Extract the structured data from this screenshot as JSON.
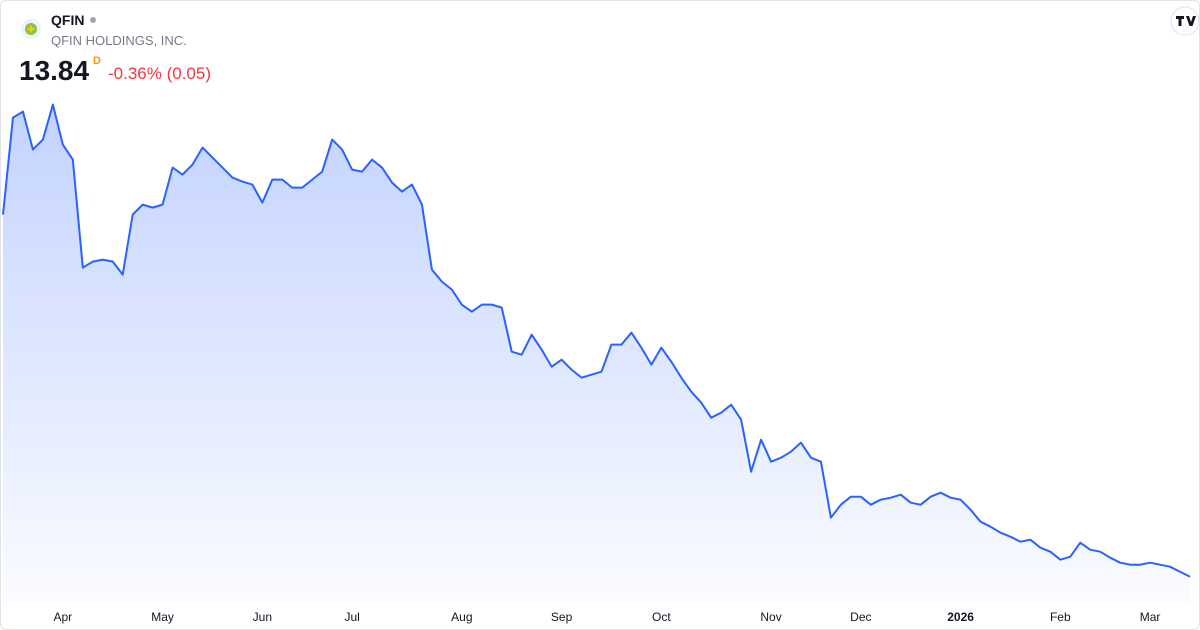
{
  "chart_data": {
    "type": "area",
    "symbol": "QFIN",
    "company": "QFIN HOLDINGS, INC.",
    "price": "13.84",
    "interval": "D",
    "change": "-0.36% (0.05)",
    "color": "#2962ff",
    "ylim": [
      12,
      50
    ],
    "categories": [
      null,
      null,
      null,
      null,
      null,
      null,
      "Apr",
      null,
      null,
      null,
      null,
      null,
      null,
      null,
      null,
      null,
      "May",
      null,
      null,
      null,
      null,
      null,
      null,
      null,
      null,
      null,
      "Jun",
      null,
      null,
      null,
      null,
      null,
      null,
      null,
      null,
      "Jul",
      null,
      null,
      null,
      null,
      null,
      null,
      null,
      null,
      null,
      null,
      "Aug",
      null,
      null,
      null,
      null,
      null,
      null,
      null,
      null,
      null,
      "Sep",
      null,
      null,
      null,
      null,
      null,
      null,
      null,
      null,
      null,
      "Oct",
      null,
      null,
      null,
      null,
      null,
      null,
      null,
      null,
      null,
      null,
      "Nov",
      null,
      null,
      null,
      null,
      null,
      null,
      null,
      null,
      "Dec",
      null,
      null,
      null,
      null,
      null,
      null,
      null,
      null,
      null,
      "2026",
      null,
      null,
      null,
      null,
      null,
      null,
      null,
      null,
      null,
      "Feb",
      null,
      null,
      null,
      null,
      null,
      null,
      null,
      null,
      "Mar",
      null,
      null,
      null,
      null
    ],
    "values": [
      39.18,
      45.97,
      46.39,
      43.73,
      44.43,
      46.88,
      44.08,
      43.03,
      35.47,
      35.89,
      36.03,
      35.89,
      34.98,
      39.18,
      39.88,
      39.67,
      39.88,
      42.47,
      41.98,
      42.68,
      43.87,
      43.17,
      42.47,
      41.77,
      41.49,
      41.28,
      40.02,
      41.63,
      41.63,
      41.07,
      41.07,
      41.63,
      42.19,
      44.43,
      43.73,
      42.33,
      42.19,
      43.03,
      42.47,
      41.42,
      40.79,
      41.28,
      39.88,
      35.33,
      34.49,
      33.93,
      32.88,
      32.39,
      32.88,
      32.88,
      32.67,
      29.59,
      29.38,
      30.78,
      29.73,
      28.54,
      29.03,
      28.33,
      27.77,
      27.98,
      28.19,
      30.08,
      30.08,
      30.92,
      29.87,
      28.68,
      29.87,
      28.89,
      27.77,
      26.79,
      26.02,
      24.97,
      25.32,
      25.88,
      24.83,
      21.19,
      23.43,
      21.89,
      22.17,
      22.59,
      23.22,
      22.17,
      21.89,
      17.97,
      18.88,
      19.44,
      19.44,
      18.88,
      19.23,
      19.37,
      19.58,
      19.02,
      18.88,
      19.44,
      19.72,
      19.37,
      19.23,
      18.53,
      17.69,
      17.34,
      16.92,
      16.64,
      16.29,
      16.43,
      15.87,
      15.59,
      15.03,
      15.24,
      16.22,
      15.73,
      15.59,
      15.17,
      14.82,
      14.68,
      14.68,
      14.82,
      14.68,
      14.54,
      14.19,
      13.84
    ]
  }
}
